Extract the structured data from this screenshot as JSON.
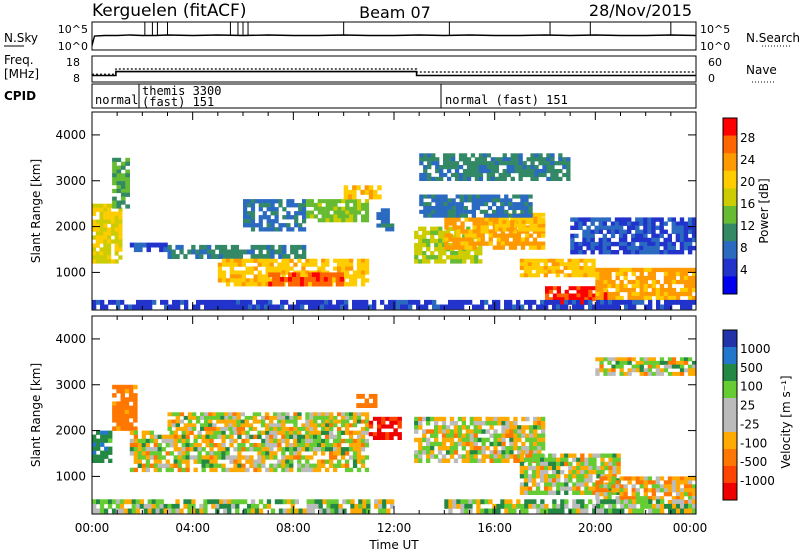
{
  "header": {
    "station": "Kerguelen (fitACF)",
    "beam": "Beam 07",
    "date": "28/Nov/2015"
  },
  "sky_panel": {
    "left_label": "N.Sky",
    "right_label": "N.Search",
    "left_ticks": [
      "10^5",
      "10^0"
    ],
    "right_ticks": [
      "10^5",
      "10^0"
    ]
  },
  "freq_panel": {
    "left_label_1": "Freq.",
    "left_label_2": "[MHz]",
    "right_label": "Nave",
    "left_ticks": [
      "18",
      "8"
    ],
    "right_ticks": [
      "60",
      "0"
    ]
  },
  "cpid_panel": {
    "label": "CPID",
    "segments": [
      {
        "line1": "normal",
        "line2": ""
      },
      {
        "line1": "themis 3300",
        "line2": "(fast) 151"
      },
      {
        "line1": "normal (fast) 151",
        "line2": ""
      }
    ]
  },
  "power_panel": {
    "ylabel": "Slant Range [km]",
    "colorbar_label": "Power [dB]",
    "colorbar_ticks": [
      "28",
      "24",
      "20",
      "16",
      "12",
      "8",
      "4"
    ],
    "colorbar_colors": [
      "#ff0000",
      "#ff6600",
      "#ff9900",
      "#ffcc00",
      "#cccc00",
      "#66bb33",
      "#338866",
      "#2a6ac0",
      "#2233cc",
      "#0000ee"
    ]
  },
  "velocity_panel": {
    "ylabel": "Slant Range [km]",
    "colorbar_label": "Velocity [m s⁻¹]",
    "colorbar_ticks": [
      "1000",
      "500",
      "100",
      "25",
      "-25",
      "-100",
      "-500",
      "-1000"
    ],
    "colorbar_colors": [
      "#2233aa",
      "#2277cc",
      "#228844",
      "#66cc33",
      "#bbbbbb",
      "#bbbbbb",
      "#ffaa00",
      "#ff7700",
      "#ff4400",
      "#ee0000"
    ]
  },
  "x_axis": {
    "label": "Time UT",
    "ticks": [
      "00:00",
      "04:00",
      "08:00",
      "12:00",
      "16:00",
      "20:00",
      "00:00"
    ]
  },
  "chart_data": [
    {
      "type": "line",
      "name": "N.Sky",
      "xlim": [
        0,
        24
      ],
      "x": [
        0,
        0.1,
        0.5,
        1,
        1.5,
        2,
        2.5,
        3,
        4,
        5,
        6,
        7,
        8,
        9,
        10,
        11,
        12,
        13,
        14,
        15,
        16,
        17,
        18,
        19,
        20,
        21,
        22,
        23,
        24
      ],
      "y": [
        0.5,
        2.5,
        2.6,
        2.6,
        2.7,
        2.6,
        2.6,
        2.7,
        2.6,
        2.7,
        2.6,
        2.7,
        2.6,
        2.6,
        2.7,
        2.6,
        2.6,
        2.7,
        2.6,
        2.7,
        2.6,
        2.6,
        2.7,
        2.6,
        2.7,
        2.6,
        2.6,
        2.7,
        2.6
      ],
      "ylim": [
        0,
        5
      ],
      "yscale": "log10"
    },
    {
      "type": "line",
      "name": "Freq.",
      "ylabel": "[MHz]",
      "x": [
        0,
        0.95,
        0.95,
        12.9,
        12.9,
        24
      ],
      "y": [
        10.5,
        10.5,
        12.0,
        12.0,
        10.5,
        10.5
      ],
      "ylim": [
        8,
        18
      ]
    },
    {
      "type": "line",
      "name": "Nave",
      "x": [
        0,
        0.95,
        0.95,
        12.9,
        12.9,
        24
      ],
      "y": [
        18,
        18,
        30,
        30,
        23,
        23
      ],
      "ylim": [
        0,
        60
      ]
    },
    {
      "type": "heatmap",
      "title": "Power [dB]",
      "xlabel": "Time UT",
      "ylabel": "Slant Range [km]",
      "xlim": [
        0,
        24
      ],
      "ylim": [
        180,
        4500
      ],
      "zlim": [
        0,
        30
      ],
      "blobs": [
        {
          "t": [
            0.0,
            1.2
          ],
          "r": [
            1200,
            2500
          ],
          "v": 18
        },
        {
          "t": [
            0.8,
            1.5
          ],
          "r": [
            2400,
            3500
          ],
          "v": 12
        },
        {
          "t": [
            1.5,
            3.0
          ],
          "r": [
            1450,
            1650
          ],
          "v": 6
        },
        {
          "t": [
            3.0,
            8.5
          ],
          "r": [
            1300,
            1600
          ],
          "v": 10
        },
        {
          "t": [
            5.0,
            11.0
          ],
          "r": [
            700,
            1300
          ],
          "v": 20
        },
        {
          "t": [
            7.0,
            10.0
          ],
          "r": [
            700,
            1000
          ],
          "v": 26
        },
        {
          "t": [
            6.0,
            8.5
          ],
          "r": [
            1900,
            2600
          ],
          "v": 8
        },
        {
          "t": [
            8.5,
            11.0
          ],
          "r": [
            2100,
            2600
          ],
          "v": 14
        },
        {
          "t": [
            10.0,
            11.5
          ],
          "r": [
            2600,
            2900
          ],
          "v": 20
        },
        {
          "t": [
            11.3,
            12.0
          ],
          "r": [
            1900,
            2400
          ],
          "v": 8
        },
        {
          "t": [
            12.8,
            15.5
          ],
          "r": [
            1200,
            2000
          ],
          "v": 16
        },
        {
          "t": [
            14.0,
            18.0
          ],
          "r": [
            1500,
            2200
          ],
          "v": 22
        },
        {
          "t": [
            16.0,
            18.0
          ],
          "r": [
            1900,
            2300
          ],
          "v": 20
        },
        {
          "t": [
            13.0,
            17.5
          ],
          "r": [
            2200,
            2700
          ],
          "v": 8
        },
        {
          "t": [
            17.0,
            20.0
          ],
          "r": [
            900,
            1300
          ],
          "v": 20
        },
        {
          "t": [
            18.0,
            20.5
          ],
          "r": [
            300,
            700
          ],
          "v": 28
        },
        {
          "t": [
            20.0,
            24.0
          ],
          "r": [
            400,
            1100
          ],
          "v": 22
        },
        {
          "t": [
            19.0,
            24.0
          ],
          "r": [
            1400,
            2200
          ],
          "v": 6
        },
        {
          "t": [
            13.0,
            19.0
          ],
          "r": [
            3000,
            3600
          ],
          "v": 10
        },
        {
          "t": [
            0.0,
            24.0
          ],
          "r": [
            200,
            400
          ],
          "v": 5
        }
      ]
    },
    {
      "type": "heatmap",
      "title": "Velocity [m s⁻¹]",
      "xlabel": "Time UT",
      "ylabel": "Slant Range [km]",
      "xlim": [
        0,
        24
      ],
      "ylim": [
        180,
        4500
      ],
      "zlim": [
        -1000,
        1000
      ],
      "blobs": [
        {
          "t": [
            0.0,
            0.8
          ],
          "r": [
            1300,
            2000
          ],
          "v": 200
        },
        {
          "t": [
            0.8,
            1.8
          ],
          "r": [
            2000,
            3000
          ],
          "v": -200
        },
        {
          "t": [
            1.5,
            11.0
          ],
          "r": [
            1100,
            2000
          ],
          "v": 0
        },
        {
          "t": [
            3.0,
            8.0
          ],
          "r": [
            2000,
            2400
          ],
          "v": 0
        },
        {
          "t": [
            8.0,
            11.0
          ],
          "r": [
            2000,
            2400
          ],
          "v": 0
        },
        {
          "t": [
            10.5,
            11.5
          ],
          "r": [
            2500,
            2800
          ],
          "v": -300
        },
        {
          "t": [
            11.0,
            12.3
          ],
          "r": [
            1800,
            2300
          ],
          "v": -800
        },
        {
          "t": [
            12.8,
            18.0
          ],
          "r": [
            1300,
            2300
          ],
          "v": 0
        },
        {
          "t": [
            17.0,
            21.0
          ],
          "r": [
            600,
            1500
          ],
          "v": 0
        },
        {
          "t": [
            20.0,
            24.0
          ],
          "r": [
            400,
            1000
          ],
          "v": -60
        },
        {
          "t": [
            0.0,
            12.0
          ],
          "r": [
            200,
            500
          ],
          "v": 40
        },
        {
          "t": [
            14.0,
            24.0
          ],
          "r": [
            200,
            500
          ],
          "v": 60
        },
        {
          "t": [
            20.0,
            24.0
          ],
          "r": [
            3200,
            3600
          ],
          "v": 0
        }
      ]
    }
  ]
}
